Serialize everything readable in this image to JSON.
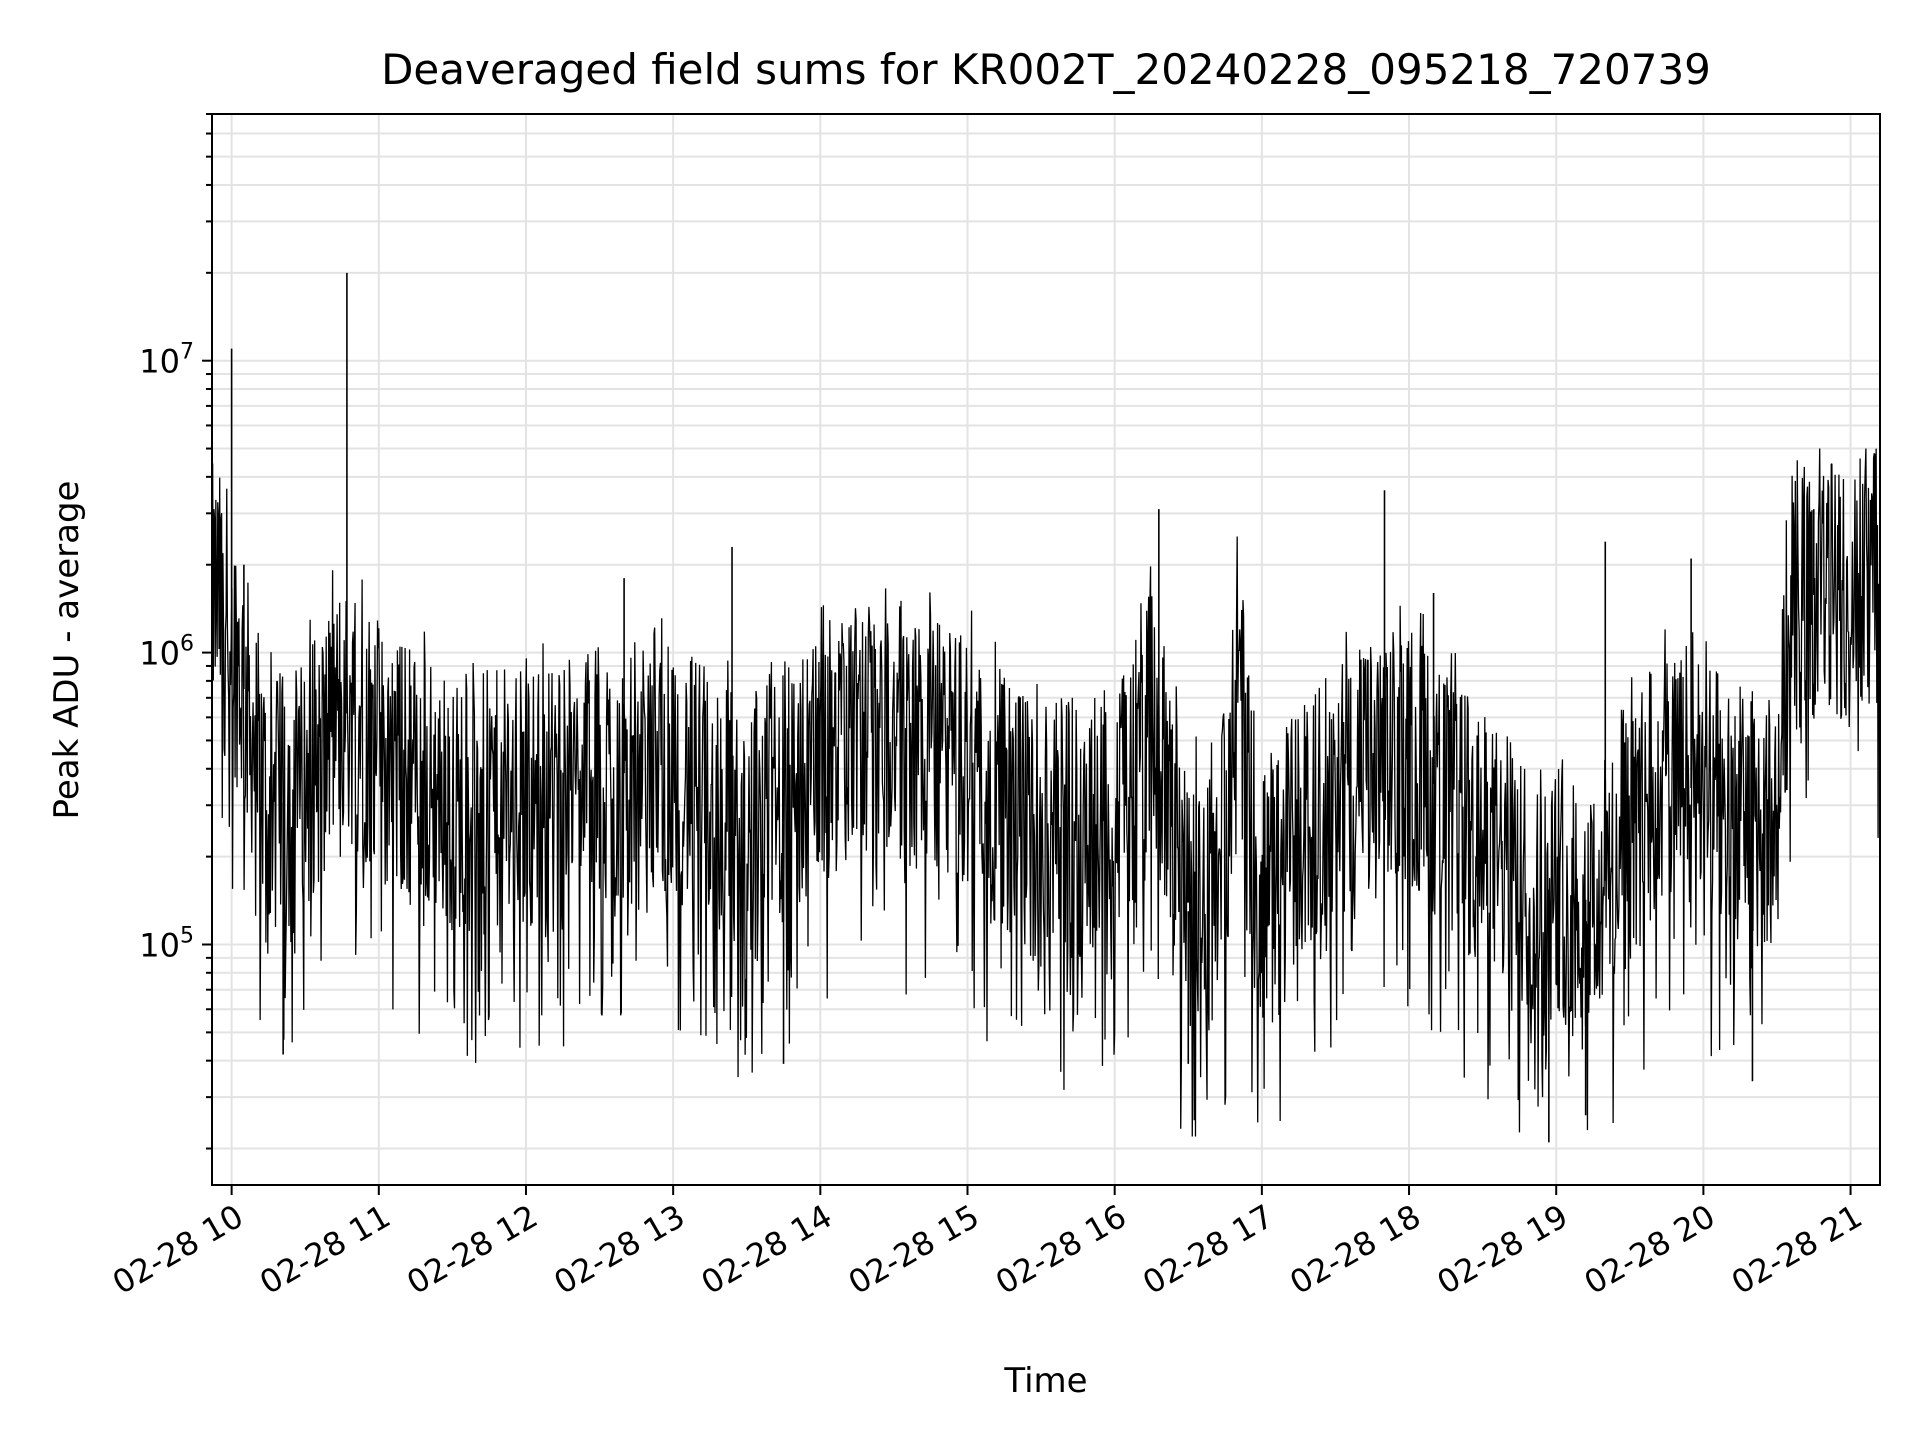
{
  "chart_data": {
    "type": "line",
    "title": "Deaveraged field sums for KR002T_20240228_095218_720739",
    "xlabel": "Time",
    "ylabel": "Peak ADU - average",
    "yscale": "log",
    "ylim": [
      15000,
      70000000
    ],
    "xlim": [
      "02-28 09:52",
      "02-28 21:12"
    ],
    "grid": true,
    "x_ticks": [
      "02-28 10",
      "02-28 11",
      "02-28 12",
      "02-28 13",
      "02-28 14",
      "02-28 15",
      "02-28 16",
      "02-28 17",
      "02-28 18",
      "02-28 19",
      "02-28 20",
      "02-28 21"
    ],
    "y_major_ticks": [
      {
        "value": 100000,
        "base": "10",
        "exp": "5"
      },
      {
        "value": 1000000,
        "base": "10",
        "exp": "6"
      },
      {
        "value": 10000000,
        "base": "10",
        "exp": "7"
      }
    ],
    "line_color": "#000000",
    "series": [
      {
        "values": [
          {
            "t": "09:52",
            "y": 1600000
          },
          {
            "t": "09:58",
            "y": 1400000
          },
          {
            "t": "10:05",
            "y": 750000
          },
          {
            "t": "10:15",
            "y": 280000
          },
          {
            "t": "10:30",
            "y": 350000
          },
          {
            "t": "10:45",
            "y": 650000
          },
          {
            "t": "11:00",
            "y": 450000
          },
          {
            "t": "11:30",
            "y": 300000
          },
          {
            "t": "12:00",
            "y": 320000
          },
          {
            "t": "12:30",
            "y": 380000
          },
          {
            "t": "13:00",
            "y": 400000
          },
          {
            "t": "13:30",
            "y": 250000
          },
          {
            "t": "14:00",
            "y": 450000
          },
          {
            "t": "14:30",
            "y": 550000
          },
          {
            "t": "15:00",
            "y": 420000
          },
          {
            "t": "15:30",
            "y": 230000
          },
          {
            "t": "16:00",
            "y": 280000
          },
          {
            "t": "16:15",
            "y": 650000
          },
          {
            "t": "16:30",
            "y": 130000
          },
          {
            "t": "16:45",
            "y": 220000
          },
          {
            "t": "16:50",
            "y": 1000000
          },
          {
            "t": "16:58",
            "y": 140000
          },
          {
            "t": "17:30",
            "y": 350000
          },
          {
            "t": "18:00",
            "y": 450000
          },
          {
            "t": "18:30",
            "y": 220000
          },
          {
            "t": "18:50",
            "y": 160000
          },
          {
            "t": "19:15",
            "y": 140000
          },
          {
            "t": "19:45",
            "y": 380000
          },
          {
            "t": "20:15",
            "y": 280000
          },
          {
            "t": "20:30",
            "y": 250000
          },
          {
            "t": "20:35",
            "y": 1500000
          },
          {
            "t": "21:12",
            "y": 1800000
          }
        ],
        "spikes": [
          {
            "t": "09:53",
            "y": 2400000
          },
          {
            "t": "10:00",
            "y": 11000000
          },
          {
            "t": "10:05",
            "y": 2000000
          },
          {
            "t": "10:47",
            "y": 20000000
          },
          {
            "t": "12:40",
            "y": 1800000
          },
          {
            "t": "13:24",
            "y": 2300000
          },
          {
            "t": "16:18",
            "y": 3100000
          },
          {
            "t": "17:50",
            "y": 3600000
          },
          {
            "t": "18:10",
            "y": 1600000
          },
          {
            "t": "19:20",
            "y": 2400000
          },
          {
            "t": "19:55",
            "y": 2100000
          },
          {
            "t": "20:45",
            "y": 3100000
          },
          {
            "t": "21:10",
            "y": 4800000
          },
          {
            "t": "18:57",
            "y": 21000
          },
          {
            "t": "19:12",
            "y": 26000
          },
          {
            "t": "20:20",
            "y": 34000
          },
          {
            "t": "16:30",
            "y": 39000
          },
          {
            "t": "13:45",
            "y": 39000
          },
          {
            "t": "10:21",
            "y": 42000
          }
        ]
      }
    ]
  }
}
